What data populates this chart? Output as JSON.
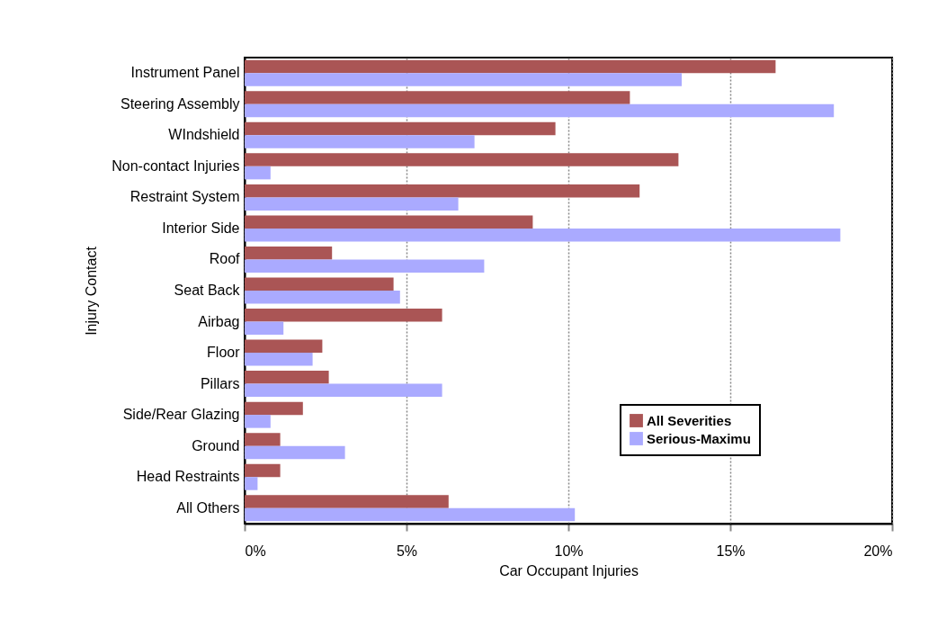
{
  "chart_data": {
    "type": "bar",
    "orientation": "horizontal",
    "xlabel": "Car Occupant Injuries",
    "ylabel": "Injury Contact",
    "categories": [
      "Instrument Panel",
      "Steering Assembly",
      "WIndshield",
      "Non-contact Injuries",
      "Restraint System",
      "Interior Side",
      "Roof",
      "Seat Back",
      "Airbag",
      "Floor",
      "Pillars",
      "Side/Rear Glazing",
      "Ground",
      "Head Restraints",
      "All Others"
    ],
    "series": [
      {
        "name": "All Severities",
        "color": "#aa5555",
        "values": [
          16.4,
          11.9,
          9.6,
          13.4,
          12.2,
          8.9,
          2.7,
          4.6,
          6.1,
          2.4,
          2.6,
          1.8,
          1.1,
          1.1,
          6.3
        ]
      },
      {
        "name": "Serious-Maximu",
        "color": "#aaaaff",
        "values": [
          13.5,
          18.2,
          7.1,
          0.8,
          6.6,
          18.4,
          7.4,
          4.8,
          1.2,
          2.1,
          6.1,
          0.8,
          3.1,
          0.4,
          10.2
        ]
      }
    ],
    "xlim": [
      0,
      20
    ],
    "xticks": [
      {
        "value": 0,
        "label": "0%"
      },
      {
        "value": 5,
        "label": "5%"
      },
      {
        "value": 10,
        "label": "10%"
      },
      {
        "value": 15,
        "label": "15%"
      },
      {
        "value": 20,
        "label": "20%"
      }
    ],
    "grid": "x",
    "legend": "bottom right"
  }
}
